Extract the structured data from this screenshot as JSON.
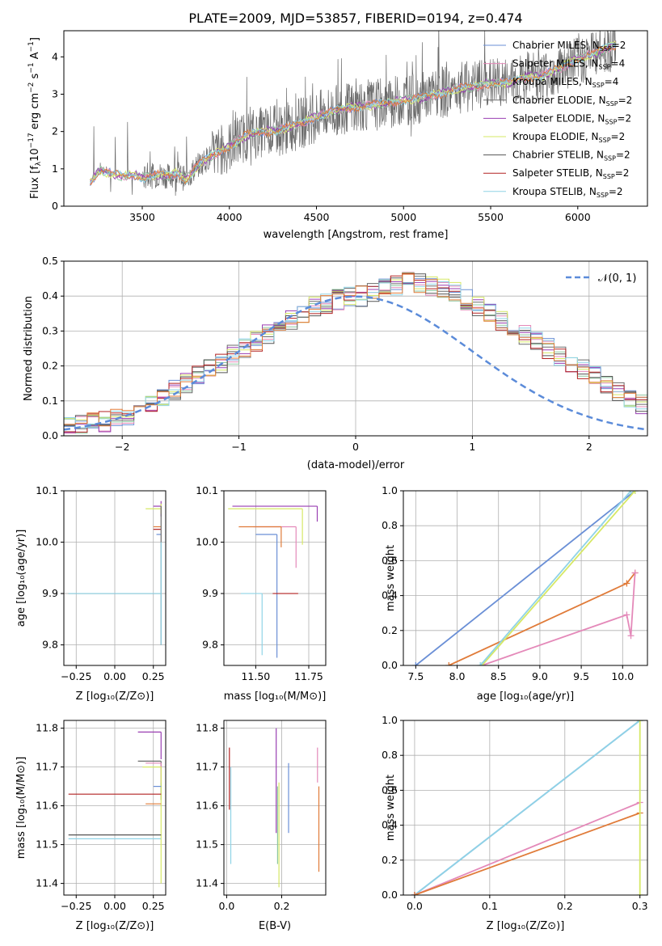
{
  "figure_title": "PLATE=2009, MJD=53857, FIBERID=0194, z=0.474",
  "colors": {
    "axis": "#000000",
    "grid": "#b0b0b0",
    "normal_curve": "#5b8bd9",
    "series": [
      "#6a8fd6",
      "#e489b9",
      "#8ec8a0",
      "#6b6b6b",
      "#9a3fb2",
      "#d6e866",
      "#555555",
      "#b22222",
      "#8fd3e6",
      "#e07b39"
    ]
  },
  "legend_spectrum": [
    {
      "name": "Chabrier MILES, N",
      "sub": "SSP",
      "tail": "=2",
      "color": "#6a8fd6"
    },
    {
      "name": "Salpeter MILES, N",
      "sub": "SSP",
      "tail": "=4",
      "color": "#e489b9"
    },
    {
      "name": "Kroupa MILES, N",
      "sub": "SSP",
      "tail": "=4",
      "color": "#8ec8a0"
    },
    {
      "name": "Chabrier ELODIE, N",
      "sub": "SSP",
      "tail": "=2",
      "color": "#6b6b6b"
    },
    {
      "name": "Salpeter ELODIE, N",
      "sub": "SSP",
      "tail": "=2",
      "color": "#9a3fb2"
    },
    {
      "name": "Kroupa ELODIE, N",
      "sub": "SSP",
      "tail": "=2",
      "color": "#d6e866"
    },
    {
      "name": "Chabrier STELIB, N",
      "sub": "SSP",
      "tail": "=2",
      "color": "#555555"
    },
    {
      "name": "Salpeter STELIB, N",
      "sub": "SSP",
      "tail": "=2",
      "color": "#b22222"
    },
    {
      "name": "Kroupa STELIB, N",
      "sub": "SSP",
      "tail": "=2",
      "color": "#8fd3e6"
    }
  ],
  "legend_hist": {
    "label": "𝒩(0, 1)"
  },
  "chart_data": [
    {
      "id": "spectrum",
      "type": "line",
      "title": "PLATE=2009, MJD=53857, FIBERID=0194, z=0.474",
      "xlabel": "wavelength [Angstrom, rest frame]",
      "ylabel": "Flux [fₐ 10⁻¹⁷ erg cm⁻² s⁻¹ A⁻¹]",
      "ylabel_parts": {
        "a": "Flux [f",
        "sub": "λ",
        "b": "10",
        "sup1": "−17",
        "c": " erg cm",
        "sup2": "−2",
        "d": " s",
        "sup3": "−1",
        "e": " A",
        "sup4": "−1",
        "f": "]"
      },
      "xlim": [
        3050,
        6400
      ],
      "ylim": [
        0,
        4.7
      ],
      "xticks": [
        3500,
        4000,
        4500,
        5000,
        5500,
        6000
      ],
      "yticks": [
        0,
        1,
        2,
        3,
        4
      ],
      "model_x": [
        3200,
        3250,
        3300,
        3350,
        3400,
        3450,
        3500,
        3550,
        3600,
        3650,
        3700,
        3750,
        3800,
        3850,
        3900,
        3950,
        4000,
        4100,
        4200,
        4300,
        4400,
        4500,
        4600,
        4700,
        4800,
        4900,
        5000,
        5100,
        5200,
        5300,
        5400,
        5500,
        5600,
        5700,
        5800,
        5900,
        6000,
        6100,
        6200
      ],
      "model_y": [
        0.6,
        0.95,
        0.9,
        0.85,
        0.8,
        0.85,
        0.75,
        0.8,
        0.85,
        0.8,
        0.9,
        0.7,
        1.0,
        1.2,
        1.35,
        1.5,
        1.6,
        1.9,
        2.0,
        2.05,
        2.2,
        2.4,
        2.55,
        2.65,
        2.7,
        2.75,
        2.85,
        2.9,
        3.0,
        3.15,
        3.2,
        3.3,
        3.3,
        3.45,
        3.5,
        3.7,
        3.95,
        4.1,
        4.3
      ]
    },
    {
      "id": "residual_hist",
      "type": "histogram",
      "xlabel": "(data-model)/error",
      "ylabel": "Normed distribution",
      "xlim": [
        -2.5,
        2.5
      ],
      "ylim": [
        0,
        0.5
      ],
      "xticks": [
        -2,
        -1,
        0,
        1,
        2
      ],
      "yticks": [
        0.0,
        0.1,
        0.2,
        0.3,
        0.4,
        0.5
      ],
      "normal": {
        "mu": 0,
        "sigma": 1
      },
      "bin_width": 0.1,
      "envelope": [
        0.03,
        0.035,
        0.04,
        0.04,
        0.05,
        0.06,
        0.07,
        0.09,
        0.11,
        0.13,
        0.15,
        0.17,
        0.19,
        0.21,
        0.23,
        0.25,
        0.27,
        0.29,
        0.31,
        0.33,
        0.35,
        0.37,
        0.38,
        0.39,
        0.4,
        0.4,
        0.41,
        0.42,
        0.43,
        0.44,
        0.44,
        0.43,
        0.42,
        0.41,
        0.39,
        0.37,
        0.35,
        0.33,
        0.31,
        0.29,
        0.27,
        0.25,
        0.23,
        0.21,
        0.19,
        0.17,
        0.15,
        0.13,
        0.11,
        0.09,
        0.07
      ]
    },
    {
      "id": "Z_age",
      "type": "errorbar",
      "xlabel": "Z [log₁₀(Z/Z⊙)]",
      "ylabel": "age  [log₁₀(age/yr)]",
      "xlim": [
        -0.33,
        0.33
      ],
      "ylim": [
        9.76,
        10.1
      ],
      "xticks": [
        -0.25,
        0.0,
        0.25
      ],
      "yticks": [
        9.8,
        9.9,
        10.0,
        10.1
      ],
      "points": [
        {
          "x": 0.3,
          "y": 10.07,
          "xerr": [
            0.05,
            0
          ],
          "yerr": [
            0.02,
            0.01
          ],
          "series": 4
        },
        {
          "x": 0.3,
          "y": 10.065,
          "xerr": [
            0.1,
            0
          ],
          "yerr": [
            0.01,
            0.01
          ],
          "series": 5
        },
        {
          "x": 0.3,
          "y": 10.03,
          "xerr": [
            0.05,
            0
          ],
          "yerr": [
            0.0,
            0.0
          ],
          "series": 9
        },
        {
          "x": 0.3,
          "y": 10.025,
          "xerr": [
            0.05,
            0
          ],
          "yerr": [
            0.0,
            0.0
          ],
          "series": 7
        },
        {
          "x": 0.3,
          "y": 10.015,
          "xerr": [
            0.03,
            0
          ],
          "yerr": [
            0.0,
            0.0
          ],
          "series": 0
        },
        {
          "x": 0.3,
          "y": 9.9,
          "xerr": [
            0.6,
            0
          ],
          "yerr": [
            0.1,
            0.17
          ],
          "series": 3
        },
        {
          "x": 0.3,
          "y": 9.9,
          "xerr": [
            0.6,
            0
          ],
          "yerr": [
            0.1,
            0.1
          ],
          "series": 8
        }
      ]
    },
    {
      "id": "mass_age",
      "type": "errorbar",
      "xlabel": "mass [log₁₀(M/M⊙)]",
      "ylabel": "",
      "xlim": [
        11.35,
        11.83
      ],
      "ylim": [
        9.76,
        10.1
      ],
      "xticks": [
        11.5,
        11.75
      ],
      "yticks": [
        9.8,
        9.9,
        10.0,
        10.1
      ],
      "points": [
        {
          "x": 11.79,
          "y": 10.07,
          "xerr": [
            0.4,
            0
          ],
          "yerr": [
            0.03,
            0.0
          ],
          "series": 4
        },
        {
          "x": 11.72,
          "y": 10.065,
          "xerr": [
            0.35,
            0
          ],
          "yerr": [
            0.07,
            0.0
          ],
          "series": 5
        },
        {
          "x": 11.69,
          "y": 10.03,
          "xerr": [
            0.2,
            0
          ],
          "yerr": [
            0.08,
            0.0
          ],
          "series": 1
        },
        {
          "x": 11.62,
          "y": 10.03,
          "xerr": [
            0.2,
            0
          ],
          "yerr": [
            0.04,
            0.0
          ],
          "series": 9
        },
        {
          "x": 11.6,
          "y": 10.015,
          "xerr": [
            0.1,
            0
          ],
          "yerr": [
            0.24,
            0.0
          ],
          "series": 0
        },
        {
          "x": 11.7,
          "y": 9.9,
          "xerr": [
            0.12,
            0
          ],
          "yerr": [
            0.0,
            0.0
          ],
          "series": 7
        },
        {
          "x": 11.53,
          "y": 9.9,
          "xerr": [
            0.1,
            0
          ],
          "yerr": [
            0.12,
            0.0
          ],
          "series": 8
        }
      ]
    },
    {
      "id": "age_massweight",
      "type": "line",
      "xlabel": "age  [log₁₀(age/yr)]",
      "ylabel": "mass weight",
      "xlim": [
        7.35,
        10.3
      ],
      "ylim": [
        0,
        1.0
      ],
      "xticks": [
        7.5,
        8.0,
        8.5,
        9.0,
        9.5,
        10.0
      ],
      "yticks": [
        0.0,
        0.2,
        0.4,
        0.6,
        0.8,
        1.0
      ],
      "series": [
        {
          "color": 0,
          "x": [
            7.5,
            10.15
          ],
          "y": [
            0.0,
            1.0
          ]
        },
        {
          "color": 9,
          "x": [
            7.9,
            10.05,
            10.15
          ],
          "y": [
            0.0,
            0.47,
            0.53
          ]
        },
        {
          "color": 1,
          "x": [
            8.3,
            10.05,
            10.1,
            10.15
          ],
          "y": [
            0.0,
            0.29,
            0.17,
            0.53
          ]
        },
        {
          "color": 5,
          "x": [
            8.3,
            10.15
          ],
          "y": [
            0.0,
            1.0
          ]
        },
        {
          "color": 8,
          "x": [
            8.28,
            10.1
          ],
          "y": [
            0.0,
            1.0
          ]
        }
      ]
    },
    {
      "id": "Z_mass",
      "type": "errorbar",
      "xlabel": "Z [log₁₀(Z/Z⊙)]",
      "ylabel": "mass [log₁₀(M/M⊙)]",
      "xlim": [
        -0.33,
        0.33
      ],
      "ylim": [
        11.37,
        11.82
      ],
      "xticks": [
        -0.25,
        0.0,
        0.25
      ],
      "yticks": [
        11.4,
        11.5,
        11.6,
        11.7,
        11.8
      ],
      "points": [
        {
          "x": 0.3,
          "y": 11.79,
          "xerr": [
            0.15,
            0
          ],
          "yerr": [
            0.07,
            0.0
          ],
          "series": 4
        },
        {
          "x": 0.3,
          "y": 11.715,
          "xerr": [
            0.15,
            0
          ],
          "yerr": [
            0.1,
            0.0
          ],
          "series": 3
        },
        {
          "x": 0.3,
          "y": 11.71,
          "xerr": [
            0.1,
            0
          ],
          "yerr": [
            0.05,
            0.0
          ],
          "series": 1
        },
        {
          "x": 0.3,
          "y": 11.7,
          "xerr": [
            0.12,
            0
          ],
          "yerr": [
            0.3,
            0.0
          ],
          "series": 5
        },
        {
          "x": 0.3,
          "y": 11.65,
          "xerr": [
            0.05,
            0
          ],
          "yerr": [
            0.0,
            0.0
          ],
          "series": 0
        },
        {
          "x": 0.3,
          "y": 11.63,
          "xerr": [
            0.6,
            0
          ],
          "yerr": [
            0.0,
            0.0
          ],
          "series": 7
        },
        {
          "x": 0.3,
          "y": 11.605,
          "xerr": [
            0.1,
            0
          ],
          "yerr": [
            0.0,
            0.0
          ],
          "series": 9
        },
        {
          "x": 0.3,
          "y": 11.525,
          "xerr": [
            0.6,
            0
          ],
          "yerr": [
            0.0,
            0.0
          ],
          "series": 6
        },
        {
          "x": 0.3,
          "y": 11.515,
          "xerr": [
            0.6,
            0
          ],
          "yerr": [
            0.0,
            0.0
          ],
          "series": 8
        }
      ]
    },
    {
      "id": "EBV_mass",
      "type": "errorbar",
      "xlabel": "E(B-V)",
      "ylabel": "",
      "xlim": [
        -0.01,
        0.36
      ],
      "ylim": [
        11.37,
        11.82
      ],
      "xticks": [
        0.0,
        0.2
      ],
      "yticks": [
        11.4,
        11.5,
        11.6,
        11.7,
        11.8
      ],
      "points": [
        {
          "x": 0.01,
          "y": 11.67,
          "yerr": [
            0.08,
            0.08
          ],
          "series": 7
        },
        {
          "x": 0.015,
          "y": 11.6,
          "yerr": [
            0.15,
            0.1
          ],
          "series": 8
        },
        {
          "x": 0.18,
          "y": 11.65,
          "yerr": [
            0.12,
            0.15
          ],
          "series": 4
        },
        {
          "x": 0.185,
          "y": 11.55,
          "yerr": [
            0.1,
            0.1
          ],
          "series": 2
        },
        {
          "x": 0.19,
          "y": 11.52,
          "yerr": [
            0.13,
            0.14
          ],
          "series": 5
        },
        {
          "x": 0.225,
          "y": 11.62,
          "yerr": [
            0.09,
            0.09
          ],
          "series": 0
        },
        {
          "x": 0.33,
          "y": 11.7,
          "yerr": [
            0.04,
            0.05
          ],
          "series": 1
        },
        {
          "x": 0.335,
          "y": 11.55,
          "yerr": [
            0.12,
            0.1
          ],
          "series": 9
        }
      ]
    },
    {
      "id": "Z_massweight",
      "type": "line",
      "xlabel": "Z [log₁₀(Z/Z⊙)]",
      "ylabel": "mass weight",
      "xlim": [
        -0.015,
        0.31
      ],
      "ylim": [
        0,
        1.0
      ],
      "xticks": [
        0.0,
        0.1,
        0.2,
        0.3
      ],
      "yticks": [
        0.0,
        0.2,
        0.4,
        0.6,
        0.8,
        1.0
      ],
      "series": [
        {
          "color": 0,
          "x": [
            0.0,
            0.3
          ],
          "y": [
            0.0,
            1.0
          ]
        },
        {
          "color": 8,
          "x": [
            0.0,
            0.3
          ],
          "y": [
            0.0,
            1.0
          ]
        },
        {
          "color": 1,
          "x": [
            0.0,
            0.3
          ],
          "y": [
            0.0,
            0.53
          ]
        },
        {
          "color": 9,
          "x": [
            0.0,
            0.3
          ],
          "y": [
            0.0,
            0.47
          ]
        },
        {
          "color": 5,
          "x": [
            0.3,
            0.3
          ],
          "y": [
            0.0,
            1.0
          ]
        }
      ]
    }
  ]
}
